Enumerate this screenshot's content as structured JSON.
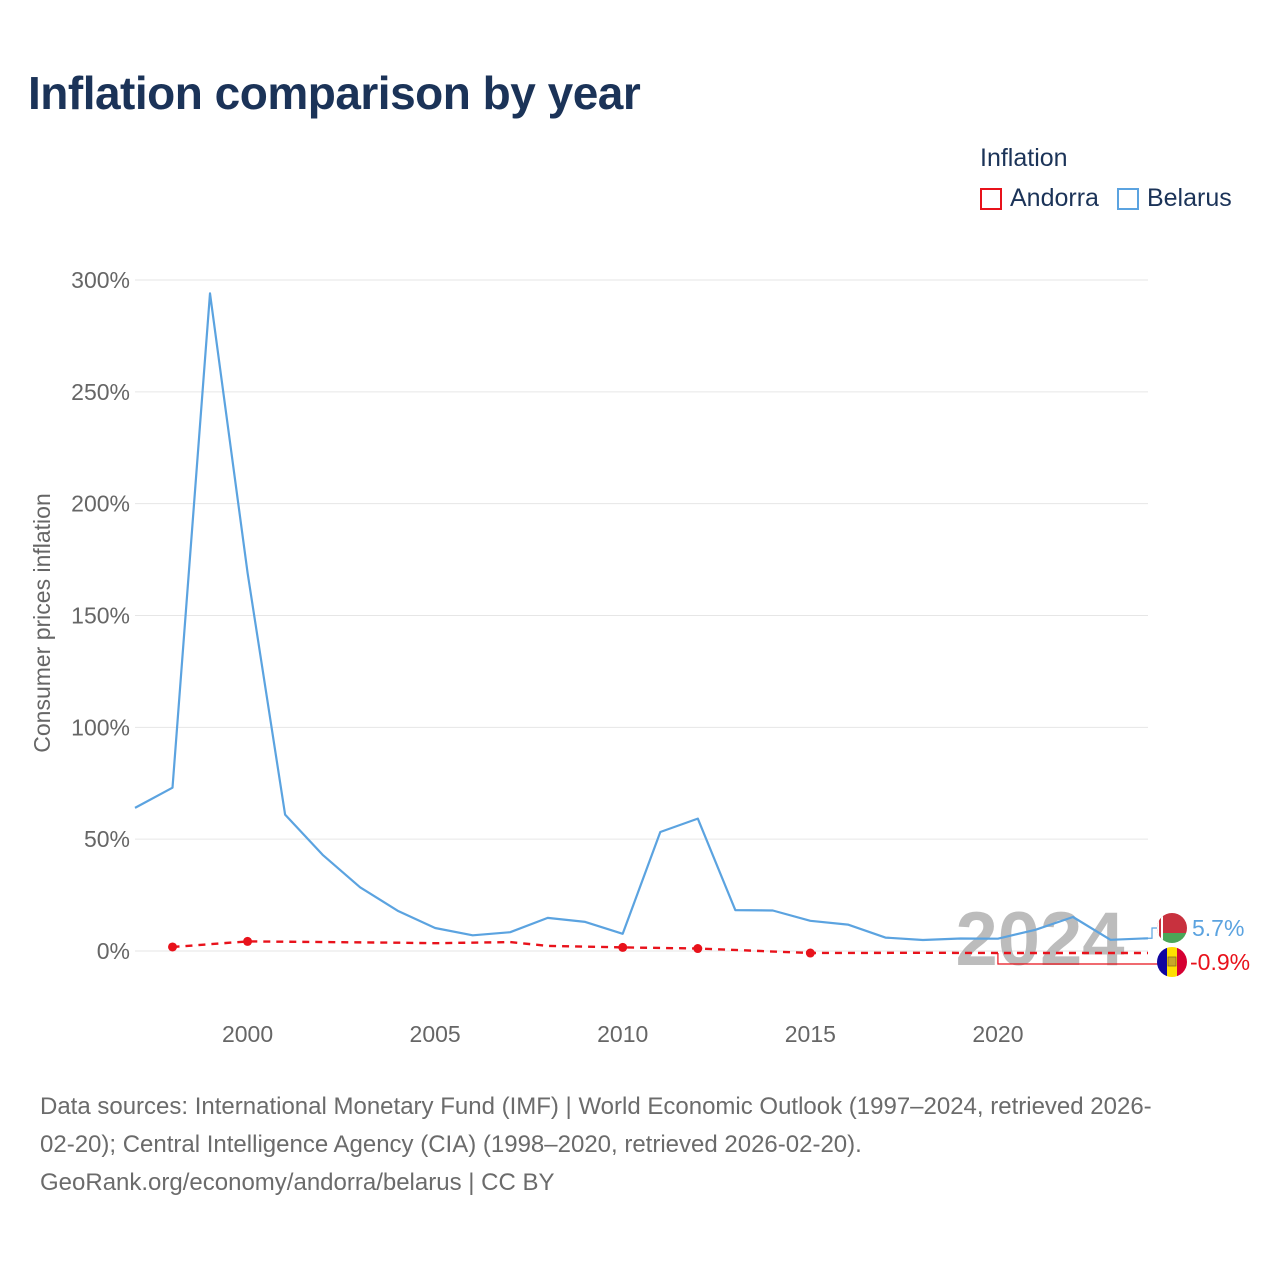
{
  "title": "Inflation comparison by year",
  "legend": {
    "title": "Inflation",
    "items": [
      {
        "label": "Andorra",
        "color": "#e8121b"
      },
      {
        "label": "Belarus",
        "color": "#5ba3e0"
      }
    ]
  },
  "footer": {
    "line1": "Data sources: International Monetary Fund (IMF) | World Economic Outlook (1997–2024, retrieved 2026-",
    "line2": "02-20); Central Intelligence Agency (CIA) (1998–2020, retrieved 2026-02-20).",
    "line3": "GeoRank.org/economy/andorra/belarus | CC BY"
  },
  "chart_data": {
    "type": "line",
    "title": "Inflation comparison by year",
    "ylabel": "Consumer prices inflation",
    "xlabel": "",
    "year_watermark": "2024",
    "xlim": [
      1997,
      2024
    ],
    "ylim": [
      -25,
      300
    ],
    "x_ticks": [
      2000,
      2005,
      2010,
      2015,
      2020
    ],
    "x_tick_labels": [
      "2000",
      "2005",
      "2010",
      "2015",
      "2020"
    ],
    "y_ticks": [
      0,
      50,
      100,
      150,
      200,
      250,
      300
    ],
    "y_tick_labels": [
      "0%",
      "50%",
      "100%",
      "150%",
      "200%",
      "250%",
      "300%"
    ],
    "grid": true,
    "series": [
      {
        "name": "Belarus",
        "color": "#5ba3e0",
        "style": "solid",
        "end_label": "5.7%",
        "x": [
          1997,
          1998,
          1999,
          2000,
          2001,
          2002,
          2003,
          2004,
          2005,
          2006,
          2007,
          2008,
          2009,
          2010,
          2011,
          2012,
          2013,
          2014,
          2015,
          2016,
          2017,
          2018,
          2019,
          2020,
          2021,
          2022,
          2023,
          2024
        ],
        "values": [
          64,
          73,
          294,
          169,
          61,
          43,
          28.5,
          18,
          10.3,
          7,
          8.4,
          14.8,
          13,
          7.7,
          53.2,
          59.2,
          18.3,
          18.1,
          13.5,
          11.8,
          6,
          4.9,
          5.6,
          5.5,
          9.5,
          15.2,
          5,
          5.7
        ]
      },
      {
        "name": "Andorra",
        "color": "#e8121b",
        "style": "dashed",
        "end_label": "-0.9%",
        "x": [
          1998,
          2000,
          2004,
          2005,
          2007,
          2008,
          2010,
          2012,
          2015,
          2018,
          2020,
          2024
        ],
        "values": [
          1.8,
          4.3,
          3.7,
          3.5,
          4,
          2.3,
          1.6,
          1.1,
          -0.9,
          -0.8,
          -0.9,
          -0.9
        ],
        "markers": [
          1998,
          2000,
          2010,
          2012,
          2015
        ]
      }
    ]
  }
}
